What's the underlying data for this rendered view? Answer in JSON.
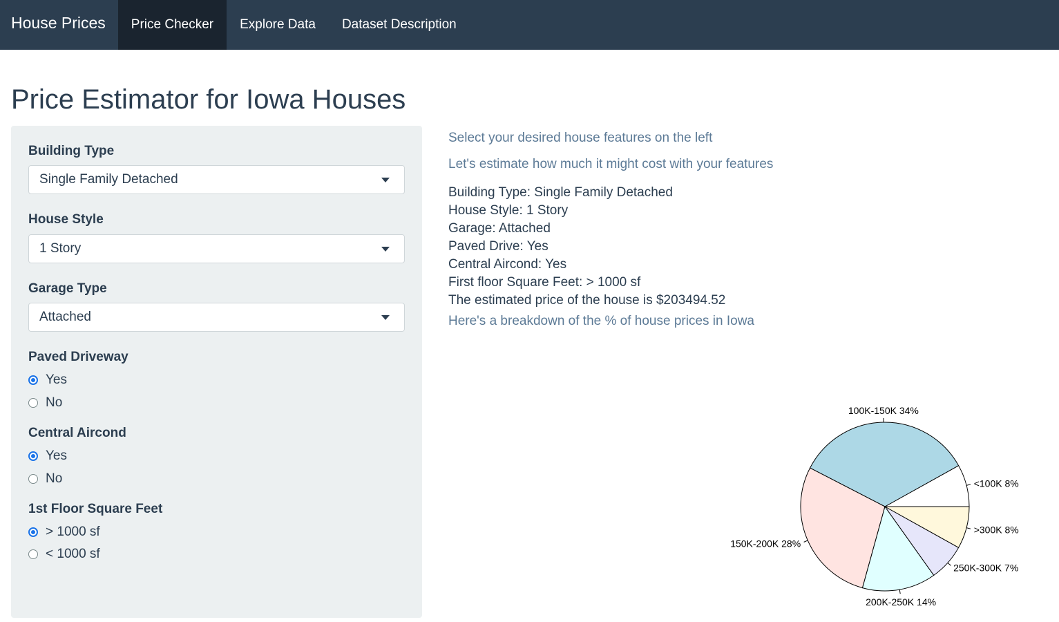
{
  "navbar": {
    "brand": "House Prices",
    "tabs": [
      {
        "label": "Price Checker",
        "active": true
      },
      {
        "label": "Explore Data",
        "active": false
      },
      {
        "label": "Dataset Description",
        "active": false
      }
    ]
  },
  "page_title": "Price Estimator for Iowa Houses",
  "sidebar": {
    "building_type": {
      "label": "Building Type",
      "value": "Single Family Detached"
    },
    "house_style": {
      "label": "House Style",
      "value": "1 Story"
    },
    "garage_type": {
      "label": "Garage Type",
      "value": "Attached"
    },
    "paved_driveway": {
      "label": "Paved Driveway",
      "options": [
        "Yes",
        "No"
      ],
      "selected": "Yes"
    },
    "central_aircond": {
      "label": "Central Aircond",
      "options": [
        "Yes",
        "No"
      ],
      "selected": "Yes"
    },
    "first_floor_sf": {
      "label": "1st Floor Square Feet",
      "options": [
        "> 1000 sf",
        "< 1000 sf"
      ],
      "selected": "> 1000 sf"
    }
  },
  "main": {
    "instruction": "Select your desired house features on the left",
    "estimate_intro": "Let's estimate how much it might cost with your features",
    "summary": [
      "Building Type: Single Family Detached",
      "House Style: 1 Story",
      "Garage: Attached",
      "Paved Drive: Yes",
      "Central Aircond: Yes",
      "First floor Square Feet: > 1000 sf",
      "The estimated price of the house is $203494.52"
    ],
    "breakdown_intro": "Here's a breakdown of the % of house prices in Iowa"
  },
  "colors": {
    "slice_lt100k": "#ffffff",
    "slice_100_150k": "#add8e6",
    "slice_150_200k": "#ffe4e1",
    "slice_200_250k": "#e0ffff",
    "slice_250_300k": "#e6e6fa",
    "slice_gt300k": "#fff8dc"
  },
  "chart_data": {
    "type": "pie",
    "start": "right, counter-clockwise",
    "slices": [
      {
        "label": "<100K 8%",
        "category": "<100K",
        "percent": 8,
        "color": "#ffffff"
      },
      {
        "label": "100K-150K 34%",
        "category": "100K-150K",
        "percent": 34,
        "color": "#add8e6"
      },
      {
        "label": "150K-200K 28%",
        "category": "150K-200K",
        "percent": 28,
        "color": "#ffe4e1"
      },
      {
        "label": "200K-250K 14%",
        "category": "200K-250K",
        "percent": 14,
        "color": "#e0ffff"
      },
      {
        "label": "250K-300K 7%",
        "category": "250K-300K",
        "percent": 7,
        "color": "#e6e6fa"
      },
      {
        "label": ">300K 8%",
        "category": ">300K",
        "percent": 8,
        "color": "#fff8dc"
      }
    ]
  }
}
